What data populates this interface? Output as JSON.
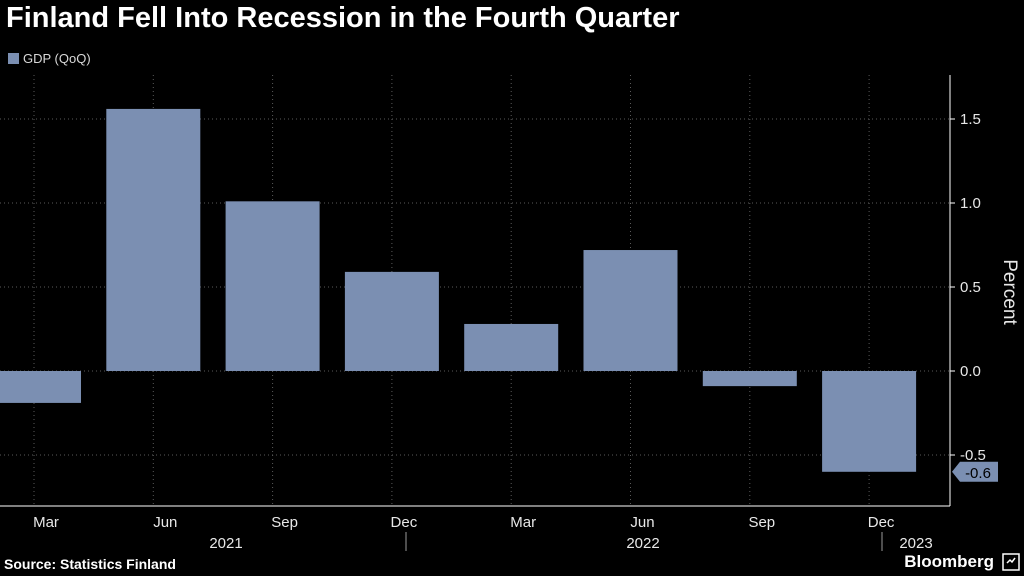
{
  "title": "Finland Fell Into Recession in the Fourth Quarter",
  "legend": {
    "label": "GDP (QoQ)"
  },
  "source": "Source: Statistics Finland",
  "brand": "Bloomberg",
  "colors": {
    "bar": "#7b8fb2",
    "background": "#000000",
    "grid": "#5a5a5a",
    "axis": "#ffffff"
  },
  "chart_data": {
    "type": "bar",
    "title": "Finland Fell Into Recession in the Fourth Quarter",
    "ylabel": "Percent",
    "ylim": [
      -0.8,
      1.75
    ],
    "yticks": [
      1.5,
      1.0,
      0.5,
      0.0,
      -0.5
    ],
    "ytick_labels": [
      "1.5",
      "1.0",
      "0.5",
      "0.0",
      "-0.5"
    ],
    "categories": [
      "Mar",
      "Jun",
      "Sep",
      "Dec",
      "Mar",
      "Jun",
      "Sep",
      "Dec"
    ],
    "years": [
      {
        "label": "2021",
        "span": [
          0,
          3
        ]
      },
      {
        "label": "2022",
        "span": [
          4,
          7
        ]
      },
      {
        "label": "2023",
        "span": [
          8,
          8
        ]
      }
    ],
    "series": [
      {
        "name": "GDP (QoQ)",
        "values": [
          -0.19,
          1.56,
          1.01,
          0.59,
          0.28,
          0.72,
          -0.09,
          -0.6
        ]
      }
    ],
    "last_value_label": "-0.6",
    "grid": true,
    "legend_position": "top-left"
  }
}
